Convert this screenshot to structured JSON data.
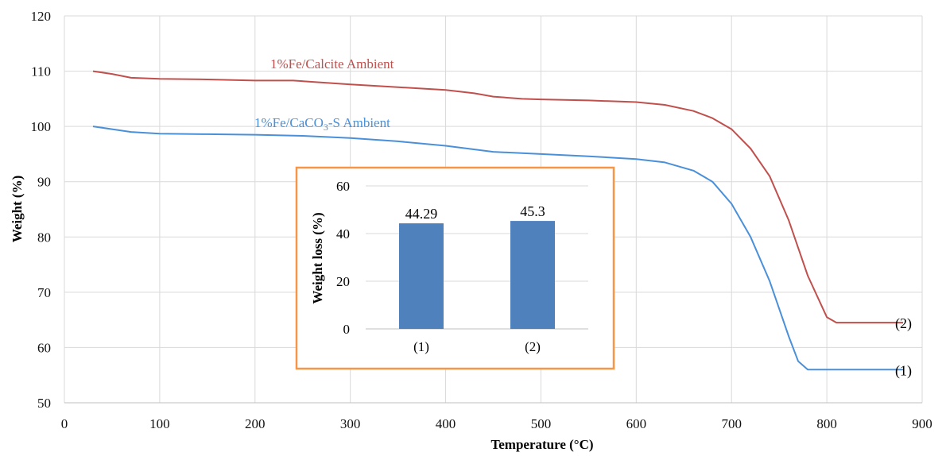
{
  "chart_data": [
    {
      "type": "line",
      "xlabel": "Temperature (°C)",
      "ylabel": "Weight (%)",
      "xlim": [
        0,
        900
      ],
      "ylim": [
        50,
        120
      ],
      "xticks": [
        0,
        100,
        200,
        300,
        400,
        500,
        600,
        700,
        800,
        900
      ],
      "yticks": [
        50,
        60,
        70,
        80,
        90,
        100,
        110,
        120
      ],
      "grid": true,
      "series": [
        {
          "name": "1%Fe/Calcite Ambient",
          "end_label": "(2)",
          "color": "#c0504d",
          "x": [
            30,
            50,
            70,
            100,
            150,
            200,
            240,
            300,
            350,
            400,
            430,
            450,
            480,
            500,
            550,
            600,
            630,
            660,
            680,
            700,
            720,
            740,
            760,
            780,
            800,
            810,
            880
          ],
          "y": [
            110,
            109.5,
            108.8,
            108.6,
            108.5,
            108.3,
            108.3,
            107.6,
            107.1,
            106.6,
            106.0,
            105.4,
            105.0,
            104.9,
            104.7,
            104.4,
            103.9,
            102.8,
            101.5,
            99.5,
            96.0,
            91.0,
            83.0,
            73.0,
            65.5,
            64.5,
            64.5
          ]
        },
        {
          "name": "1%Fe/CaCO3-S Ambient",
          "end_label": "(1)",
          "color": "#4a90d9",
          "x": [
            30,
            50,
            70,
            100,
            150,
            200,
            250,
            300,
            350,
            400,
            450,
            500,
            550,
            600,
            630,
            660,
            680,
            700,
            720,
            740,
            760,
            770,
            780,
            880
          ],
          "y": [
            100,
            99.5,
            99.0,
            98.7,
            98.6,
            98.5,
            98.3,
            97.9,
            97.3,
            96.5,
            95.4,
            95.0,
            94.6,
            94.1,
            93.5,
            92.0,
            90.0,
            86.0,
            80.0,
            72.0,
            62.0,
            57.5,
            56.0,
            56.0
          ]
        }
      ]
    },
    {
      "type": "bar",
      "ylabel": "Weight loss (%)",
      "ylim": [
        0,
        60
      ],
      "yticks": [
        0,
        20,
        40,
        60
      ],
      "categories": [
        "(1)",
        "(2)"
      ],
      "values": [
        44.29,
        45.3
      ],
      "value_labels": [
        "44.29",
        "45.3"
      ],
      "bar_color": "#4f81bd",
      "frame_color": "#f79646"
    }
  ]
}
